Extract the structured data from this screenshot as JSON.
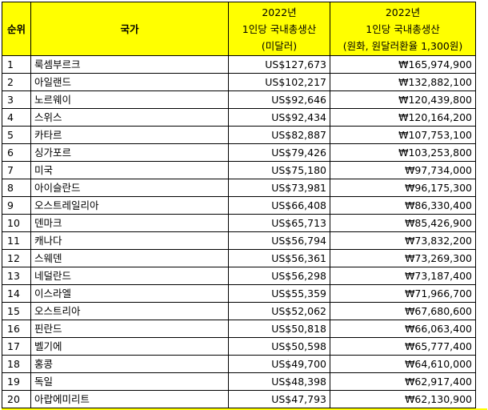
{
  "header": {
    "rank": "순위",
    "country": "국가",
    "usd": [
      "2022년",
      "1인당 국내총생산",
      "(미달러)"
    ],
    "krw": [
      "2022년",
      "1인당 국내총생산",
      "(원화, 원달러환율 1,300원)"
    ]
  },
  "rows": [
    {
      "rank": "1",
      "country": "룩셈부르크",
      "usd": "US$127,673",
      "krw": "₩165,974,900"
    },
    {
      "rank": "2",
      "country": "아일랜드",
      "usd": "US$102,217",
      "krw": "₩132,882,100"
    },
    {
      "rank": "3",
      "country": "노르웨이",
      "usd": "US$92,646",
      "krw": "₩120,439,800"
    },
    {
      "rank": "4",
      "country": "스위스",
      "usd": "US$92,434",
      "krw": "₩120,164,200"
    },
    {
      "rank": "5",
      "country": "카타르",
      "usd": "US$82,887",
      "krw": "₩107,753,100"
    },
    {
      "rank": "6",
      "country": "싱가포르",
      "usd": "US$79,426",
      "krw": "₩103,253,800"
    },
    {
      "rank": "7",
      "country": "미국",
      "usd": "US$75,180",
      "krw": "₩97,734,000"
    },
    {
      "rank": "8",
      "country": "아이슬란드",
      "usd": "US$73,981",
      "krw": "₩96,175,300"
    },
    {
      "rank": "9",
      "country": "오스트레일리아",
      "usd": "US$66,408",
      "krw": "₩86,330,400"
    },
    {
      "rank": "10",
      "country": "덴마크",
      "usd": "US$65,713",
      "krw": "₩85,426,900"
    },
    {
      "rank": "11",
      "country": "캐나다",
      "usd": "US$56,794",
      "krw": "₩73,832,200"
    },
    {
      "rank": "12",
      "country": "스웨덴",
      "usd": "US$56,361",
      "krw": "₩73,269,300"
    },
    {
      "rank": "13",
      "country": "네덜란드",
      "usd": "US$56,298",
      "krw": "₩73,187,400"
    },
    {
      "rank": "14",
      "country": "이스라엘",
      "usd": "US$55,359",
      "krw": "₩71,966,700"
    },
    {
      "rank": "15",
      "country": "오스트리아",
      "usd": "US$52,062",
      "krw": "₩67,680,600"
    },
    {
      "rank": "16",
      "country": "핀란드",
      "usd": "US$50,818",
      "krw": "₩66,063,400"
    },
    {
      "rank": "17",
      "country": "벨기에",
      "usd": "US$50,598",
      "krw": "₩65,777,400"
    },
    {
      "rank": "18",
      "country": "홍콩",
      "usd": "US$49,700",
      "krw": "₩64,610,000"
    },
    {
      "rank": "19",
      "country": "독일",
      "usd": "US$48,398",
      "krw": "₩62,917,400"
    },
    {
      "rank": "20",
      "country": "아랍에미리트",
      "usd": "US$47,793",
      "krw": "₩62,130,900"
    }
  ],
  "colors": {
    "header_bg": "#ffff00",
    "border": "#000000"
  }
}
